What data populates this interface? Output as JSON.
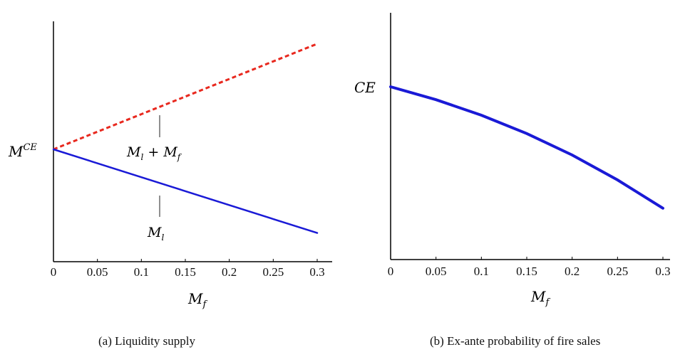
{
  "chart_data": [
    {
      "type": "line",
      "caption": "(a) Liquidity supply",
      "xlabel": "M_f",
      "x_ticks": [
        "0",
        "0.05",
        "0.1",
        "0.15",
        "0.2",
        "0.25",
        "0.3"
      ],
      "xlim": [
        0,
        0.3
      ],
      "y_origin_label": "M^CE",
      "grid": false,
      "series": [
        {
          "name": "M_l + M_f",
          "color": "#e8281e",
          "style": "dashed",
          "x": [
            0,
            0.3
          ],
          "y": [
            0,
            0.53
          ]
        },
        {
          "name": "M_l",
          "color": "#1a1ad6",
          "style": "solid",
          "x": [
            0,
            0.3
          ],
          "y": [
            0,
            -0.42
          ]
        }
      ]
    },
    {
      "type": "line",
      "caption": "(b) Ex-ante probability of fire sales",
      "xlabel": "M_f",
      "x_ticks": [
        "0",
        "0.05",
        "0.1",
        "0.15",
        "0.2",
        "0.25",
        "0.3"
      ],
      "xlim": [
        0,
        0.3
      ],
      "y_origin_label": "CE",
      "grid": false,
      "series": [
        {
          "color": "#1a1ad6",
          "style": "solid",
          "x": [
            0,
            0.05,
            0.1,
            0.15,
            0.2,
            0.25,
            0.3
          ],
          "y": [
            1.0,
            0.935,
            0.857,
            0.765,
            0.657,
            0.532,
            0.39
          ]
        }
      ]
    }
  ]
}
